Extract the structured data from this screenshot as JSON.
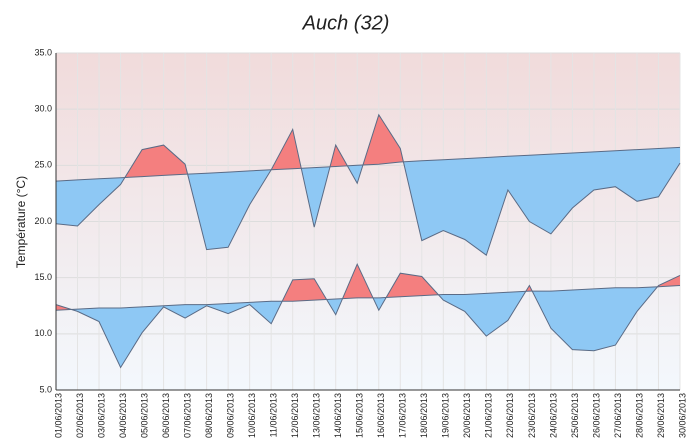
{
  "chart_data": {
    "type": "area-band",
    "title": "Auch (32)",
    "y_label": "Température (°C)",
    "categories": [
      "01/06/2013",
      "02/06/2013",
      "03/06/2013",
      "04/06/2013",
      "05/06/2013",
      "06/06/2013",
      "07/06/2013",
      "08/06/2013",
      "09/06/2013",
      "10/06/2013",
      "11/06/2013",
      "12/06/2013",
      "13/06/2013",
      "14/06/2013",
      "15/06/2013",
      "16/06/2013",
      "17/06/2013",
      "18/06/2013",
      "19/06/2013",
      "20/06/2013",
      "21/06/2013",
      "22/06/2013",
      "23/06/2013",
      "24/06/2013",
      "25/06/2013",
      "26/06/2013",
      "27/06/2013",
      "28/06/2013",
      "29/06/2013",
      "30/06/2013"
    ],
    "series": [
      {
        "color": "#5a6b86",
        "values": [
          19.8,
          19.6,
          21.5,
          23.3,
          26.4,
          26.8,
          25.1,
          17.5,
          17.7,
          21.5,
          24.6,
          28.2,
          19.5,
          26.8,
          23.4,
          29.5,
          26.5,
          18.3,
          19.2,
          18.4,
          17.0,
          22.8,
          20.0,
          18.9,
          21.2,
          22.8,
          23.1,
          21.8,
          22.2,
          25.2
        ]
      },
      {
        "color": "#5a6b86",
        "values": [
          23.6,
          23.7,
          23.8,
          23.9,
          24.0,
          24.1,
          24.2,
          24.3,
          24.4,
          24.5,
          24.6,
          24.7,
          24.8,
          24.9,
          25.0,
          25.1,
          25.3,
          25.4,
          25.5,
          25.6,
          25.7,
          25.8,
          25.9,
          26.0,
          26.1,
          26.2,
          26.3,
          26.4,
          26.5,
          26.6
        ]
      },
      {
        "color": "#5a6b86",
        "values": [
          12.6,
          12.0,
          11.1,
          7.0,
          10.1,
          12.4,
          11.4,
          12.5,
          11.8,
          12.6,
          10.9,
          14.8,
          14.9,
          11.7,
          16.2,
          12.1,
          15.4,
          15.1,
          13.0,
          12.0,
          9.8,
          11.2,
          14.3,
          10.5,
          8.6,
          8.5,
          9.0,
          12.0,
          14.3,
          15.2
        ]
      },
      {
        "color": "#5a6b86",
        "values": [
          12.1,
          12.2,
          12.3,
          12.3,
          12.4,
          12.5,
          12.6,
          12.6,
          12.7,
          12.8,
          12.9,
          12.9,
          13.0,
          13.1,
          13.2,
          13.2,
          13.3,
          13.4,
          13.5,
          13.5,
          13.6,
          13.7,
          13.8,
          13.8,
          13.9,
          14.0,
          14.1,
          14.1,
          14.2,
          14.3
        ]
      }
    ],
    "above_color": "#f47f7f",
    "below_color": "#8ec8f4",
    "ylim": [
      5,
      35
    ],
    "yticks": [
      {
        "value": 5,
        "label": "5.0"
      },
      {
        "value": 10,
        "label": "10.0"
      },
      {
        "value": 15,
        "label": "15.0"
      },
      {
        "value": 20,
        "label": "20.0"
      },
      {
        "value": 25,
        "label": "25.0"
      },
      {
        "value": 30,
        "label": "30.0"
      },
      {
        "value": 35,
        "label": "35.0"
      }
    ],
    "grid": true
  }
}
